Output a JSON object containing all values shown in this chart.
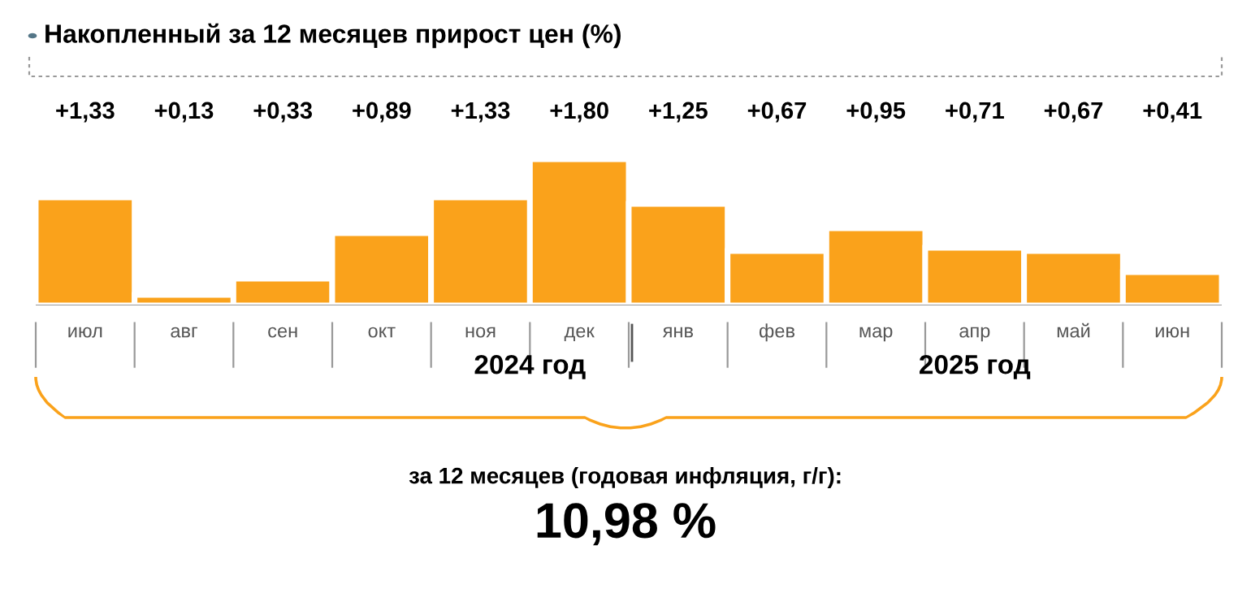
{
  "chart_data": {
    "type": "bar",
    "title": "Накопленный за 12 месяцев прирост цен (%)",
    "categories": [
      "июл",
      "авг",
      "сен",
      "окт",
      "ноя",
      "дек",
      "янв",
      "фев",
      "мар",
      "апр",
      "май",
      "июн"
    ],
    "values": [
      1.33,
      0.13,
      0.33,
      0.89,
      1.33,
      1.8,
      1.25,
      0.67,
      0.95,
      0.71,
      0.67,
      0.41
    ],
    "value_labels": [
      "+1,33",
      "+0,13",
      "+0,33",
      "+0,89",
      "+1,33",
      "+1,80",
      "+1,25",
      "+0,67",
      "+0,95",
      "+0,71",
      "+0,67",
      "+0,41"
    ],
    "color": "#faa21b",
    "annotations": [
      "2024 год",
      "2025 год",
      "за 12 месяцев (годовая инфляция, г/г):",
      "10,98 %"
    ],
    "grid": false
  }
}
